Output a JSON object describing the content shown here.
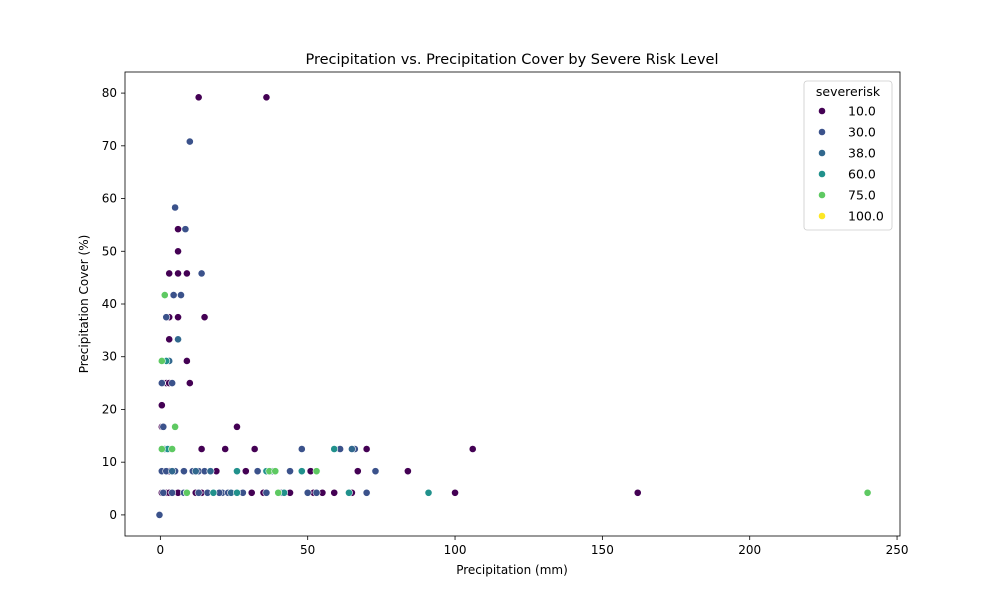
{
  "chart_data": {
    "type": "scatter",
    "title": "Precipitation vs. Precipitation Cover by Severe Risk Level",
    "xlabel": "Precipitation (mm)",
    "ylabel": "Precipitation Cover (%)",
    "xlim": [
      -12,
      251
    ],
    "ylim": [
      -4,
      84
    ],
    "xticks": [
      0,
      50,
      100,
      150,
      200,
      250
    ],
    "yticks": [
      0,
      10,
      20,
      30,
      40,
      50,
      60,
      70,
      80
    ],
    "grid": false,
    "legend": {
      "title": "severerisk",
      "placement": "top-right",
      "entries": [
        {
          "label": "10.0",
          "color": "#440154"
        },
        {
          "label": "30.0",
          "color": "#3b528b"
        },
        {
          "label": "38.0",
          "color": "#31688e"
        },
        {
          "label": "60.0",
          "color": "#21918c"
        },
        {
          "label": "75.0",
          "color": "#5ec962"
        },
        {
          "label": "100.0",
          "color": "#fde725"
        }
      ]
    },
    "series": [
      {
        "name": "10.0",
        "color": "#440154",
        "x": [
          13,
          36,
          6,
          6,
          3,
          6,
          9,
          3,
          6,
          15,
          3,
          9,
          1,
          2,
          3,
          10,
          0.5,
          0.5,
          1,
          2,
          26,
          0.5,
          4,
          14,
          22,
          32,
          70,
          106,
          51,
          67,
          84,
          0.5,
          2,
          3,
          6,
          9,
          12,
          14,
          19,
          24,
          29,
          35,
          40,
          52,
          59,
          100,
          162,
          3,
          8,
          18,
          31,
          44,
          55,
          65
        ],
        "y": [
          79.2,
          79.2,
          54.2,
          50,
          45.8,
          45.8,
          45.8,
          37.5,
          37.5,
          37.5,
          33.3,
          29.2,
          25,
          25,
          25,
          25,
          20.8,
          16.7,
          16.7,
          12.5,
          16.7,
          12.5,
          12.5,
          12.5,
          12.5,
          12.5,
          12.5,
          12.5,
          8.3,
          8.3,
          8.3,
          4.2,
          4.2,
          4.2,
          4.2,
          4.2,
          4.2,
          4.2,
          8.3,
          4.2,
          8.3,
          4.2,
          4.2,
          4.2,
          4.2,
          4.2,
          4.2,
          8.3,
          8.3,
          4.2,
          4.2,
          4.2,
          4.2,
          4.2
        ]
      },
      {
        "name": "30.0",
        "color": "#3b528b",
        "x": [
          10,
          5,
          8.5,
          14,
          4.5,
          7,
          2,
          3,
          6,
          0.5,
          4,
          1,
          2,
          3,
          0.5,
          2,
          5,
          8,
          11,
          13,
          15,
          17,
          21,
          33,
          44,
          48,
          61,
          66,
          70,
          73,
          1,
          4,
          8,
          13,
          16,
          20,
          23,
          28,
          36,
          41,
          50,
          53,
          70,
          -0.3
        ],
        "y": [
          70.8,
          58.3,
          54.2,
          45.8,
          41.7,
          41.7,
          37.5,
          29.2,
          33.3,
          25,
          25,
          16.7,
          12.5,
          12.5,
          8.3,
          8.3,
          8.3,
          8.3,
          8.3,
          8.3,
          8.3,
          8.3,
          4.2,
          8.3,
          8.3,
          12.5,
          12.5,
          12.5,
          4.2,
          8.3,
          4.2,
          4.2,
          4.2,
          4.2,
          4.2,
          4.2,
          4.2,
          4.2,
          4.2,
          4.2,
          4.2,
          4.2,
          4.2,
          0
        ]
      },
      {
        "name": "38.0",
        "color": "#31688e",
        "x": [
          6,
          3,
          1.5,
          4,
          12,
          17,
          38,
          24,
          65
        ],
        "y": [
          33.3,
          29.2,
          12.5,
          8.3,
          8.3,
          8.3,
          8.3,
          4.2,
          12.5
        ]
      },
      {
        "name": "60.0",
        "color": "#21918c",
        "x": [
          2,
          5,
          2.5,
          26,
          36,
          59,
          48,
          18,
          26,
          42,
          64,
          91,
          9
        ],
        "y": [
          29.2,
          16.7,
          12.5,
          8.3,
          8.3,
          12.5,
          8.3,
          4.2,
          4.2,
          4.2,
          4.2,
          4.2,
          4.2
        ]
      },
      {
        "name": "75.0",
        "color": "#5ec962",
        "x": [
          1.5,
          0.5,
          5,
          4,
          0.5,
          37,
          39,
          53,
          9,
          40,
          240
        ],
        "y": [
          41.7,
          29.2,
          16.7,
          12.5,
          12.5,
          8.3,
          8.3,
          8.3,
          4.2,
          4.2,
          4.2
        ]
      },
      {
        "name": "100.0",
        "color": "#fde725",
        "x": [],
        "y": []
      }
    ]
  }
}
